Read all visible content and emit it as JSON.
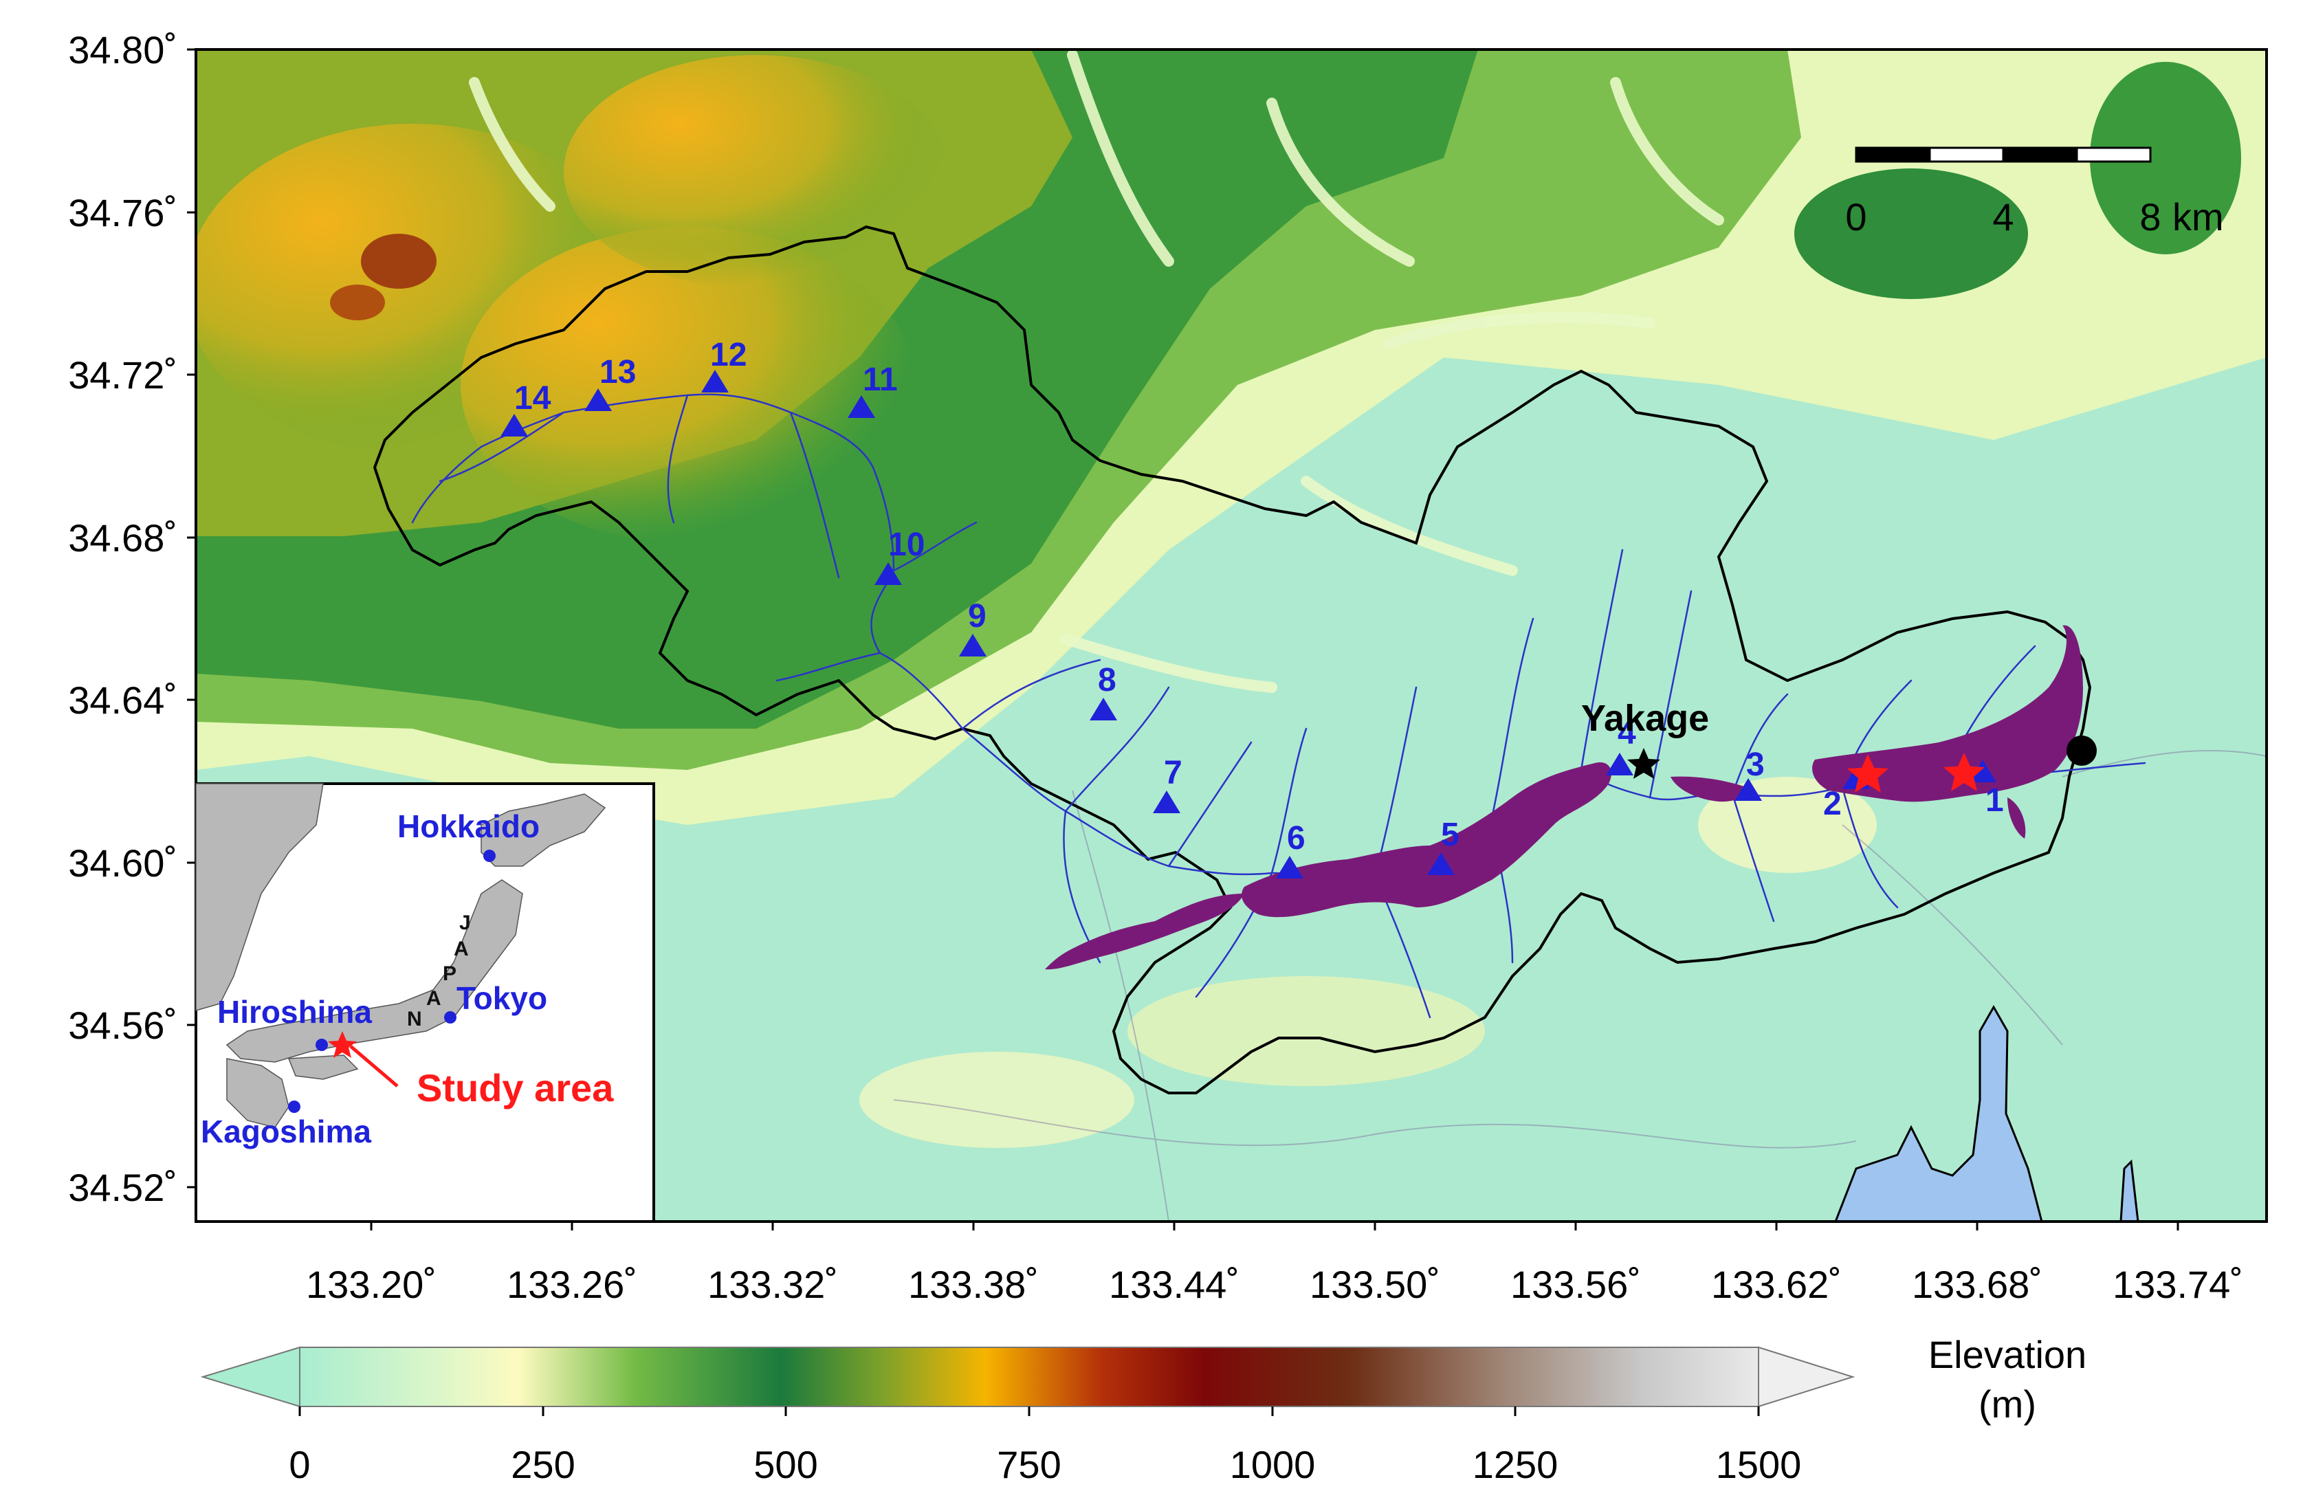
{
  "map": {
    "lat_ticks": [
      "34.80˚",
      "34.76˚",
      "34.72˚",
      "34.68˚",
      "34.64˚",
      "34.60˚",
      "34.56˚",
      "34.52˚"
    ],
    "lon_ticks": [
      "133.20˚",
      "133.26˚",
      "133.32˚",
      "133.38˚",
      "133.44˚",
      "133.50˚",
      "133.56˚",
      "133.62˚",
      "133.68˚",
      "133.74˚"
    ],
    "place_label": "Yakage",
    "stations": [
      "1",
      "2",
      "3",
      "4",
      "5",
      "6",
      "7",
      "8",
      "9",
      "10",
      "11",
      "12",
      "13",
      "14"
    ],
    "scale_bar": {
      "labels": [
        "0",
        "4",
        "8"
      ],
      "unit": "km"
    },
    "colors": {
      "station": "#1f22d9",
      "flood": "#7a1a78",
      "star": "#ff1a1a",
      "river": "#2b33c8",
      "boundary": "#000000",
      "sea": "#9ec4ef"
    }
  },
  "inset": {
    "labels": {
      "hokkaido": "Hokkaido",
      "tokyo": "Tokyo",
      "hiroshima": "Hiroshima",
      "kagoshima": "Kagoshima",
      "study_area": "Study area"
    },
    "japan_letters": [
      "J",
      "A",
      "P",
      "A",
      "N"
    ]
  },
  "colorbar": {
    "title_line1": "Elevation",
    "title_line2": "(m)",
    "ticks": [
      "0",
      "250",
      "500",
      "750",
      "1000",
      "1250",
      "1500"
    ],
    "stops": [
      "#a8edd0",
      "#fdfac0",
      "#3a9a3a",
      "#1a7a3a",
      "#f6b400",
      "#8a0a0a",
      "#e0e0e0"
    ]
  }
}
